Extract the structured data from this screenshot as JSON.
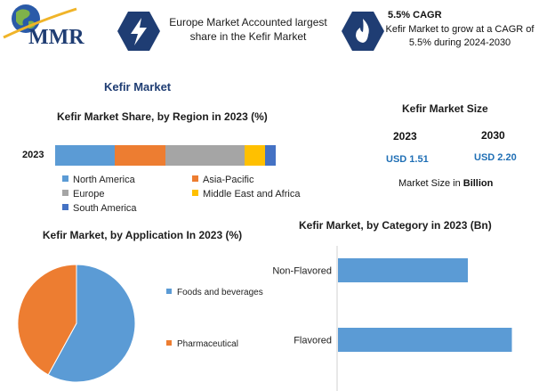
{
  "header": {
    "brand": "MMR",
    "info1": "Europe Market Accounted largest share in the Kefir Market",
    "info2_title": "5.5% CAGR",
    "info2_text": "Kefir Market to grow at a CAGR of 5.5% during 2024-2030",
    "icon1": "lightning-bolt-icon",
    "icon2": "flame-icon",
    "accent": "#1f3d73"
  },
  "main_title": "Kefir Market",
  "market_size": {
    "title": "Kefir Market Size",
    "years": [
      "2023",
      "2030"
    ],
    "values": [
      "USD 1.51",
      "USD 2.20"
    ],
    "unit_prefix": "Market Size in ",
    "unit_bold": "Billion"
  },
  "chart_data": [
    {
      "type": "bar",
      "stacked": true,
      "orientation": "horizontal",
      "title": "Kefir Market Share, by Region in 2023 (%)",
      "categories": [
        "2023"
      ],
      "series": [
        {
          "name": "North America",
          "values": [
            27
          ],
          "color": "#5b9bd5"
        },
        {
          "name": "Asia-Pacific",
          "values": [
            23
          ],
          "color": "#ed7d31"
        },
        {
          "name": "Europe",
          "values": [
            36
          ],
          "color": "#a5a5a5"
        },
        {
          "name": "Middle East and Africa",
          "values": [
            9
          ],
          "color": "#ffc000"
        },
        {
          "name": "South America",
          "values": [
            5
          ],
          "color": "#4472c4"
        }
      ],
      "legend": "bottom"
    },
    {
      "type": "pie",
      "title": "Kefir Market, by Application In 2023 (%)",
      "labels": [
        "Foods and beverages",
        "Pharmaceutical"
      ],
      "values": [
        58,
        42
      ],
      "colors": [
        "#5b9bd5",
        "#ed7d31"
      ],
      "legend": "right"
    },
    {
      "type": "bar",
      "orientation": "horizontal",
      "title": "Kefir Market, by Category in 2023 (Bn)",
      "categories": [
        "Non-Flavored",
        "Flavored"
      ],
      "values": [
        0.62,
        0.83
      ],
      "xlim": [
        0,
        0.9
      ],
      "color": "#5b9bd5"
    }
  ]
}
